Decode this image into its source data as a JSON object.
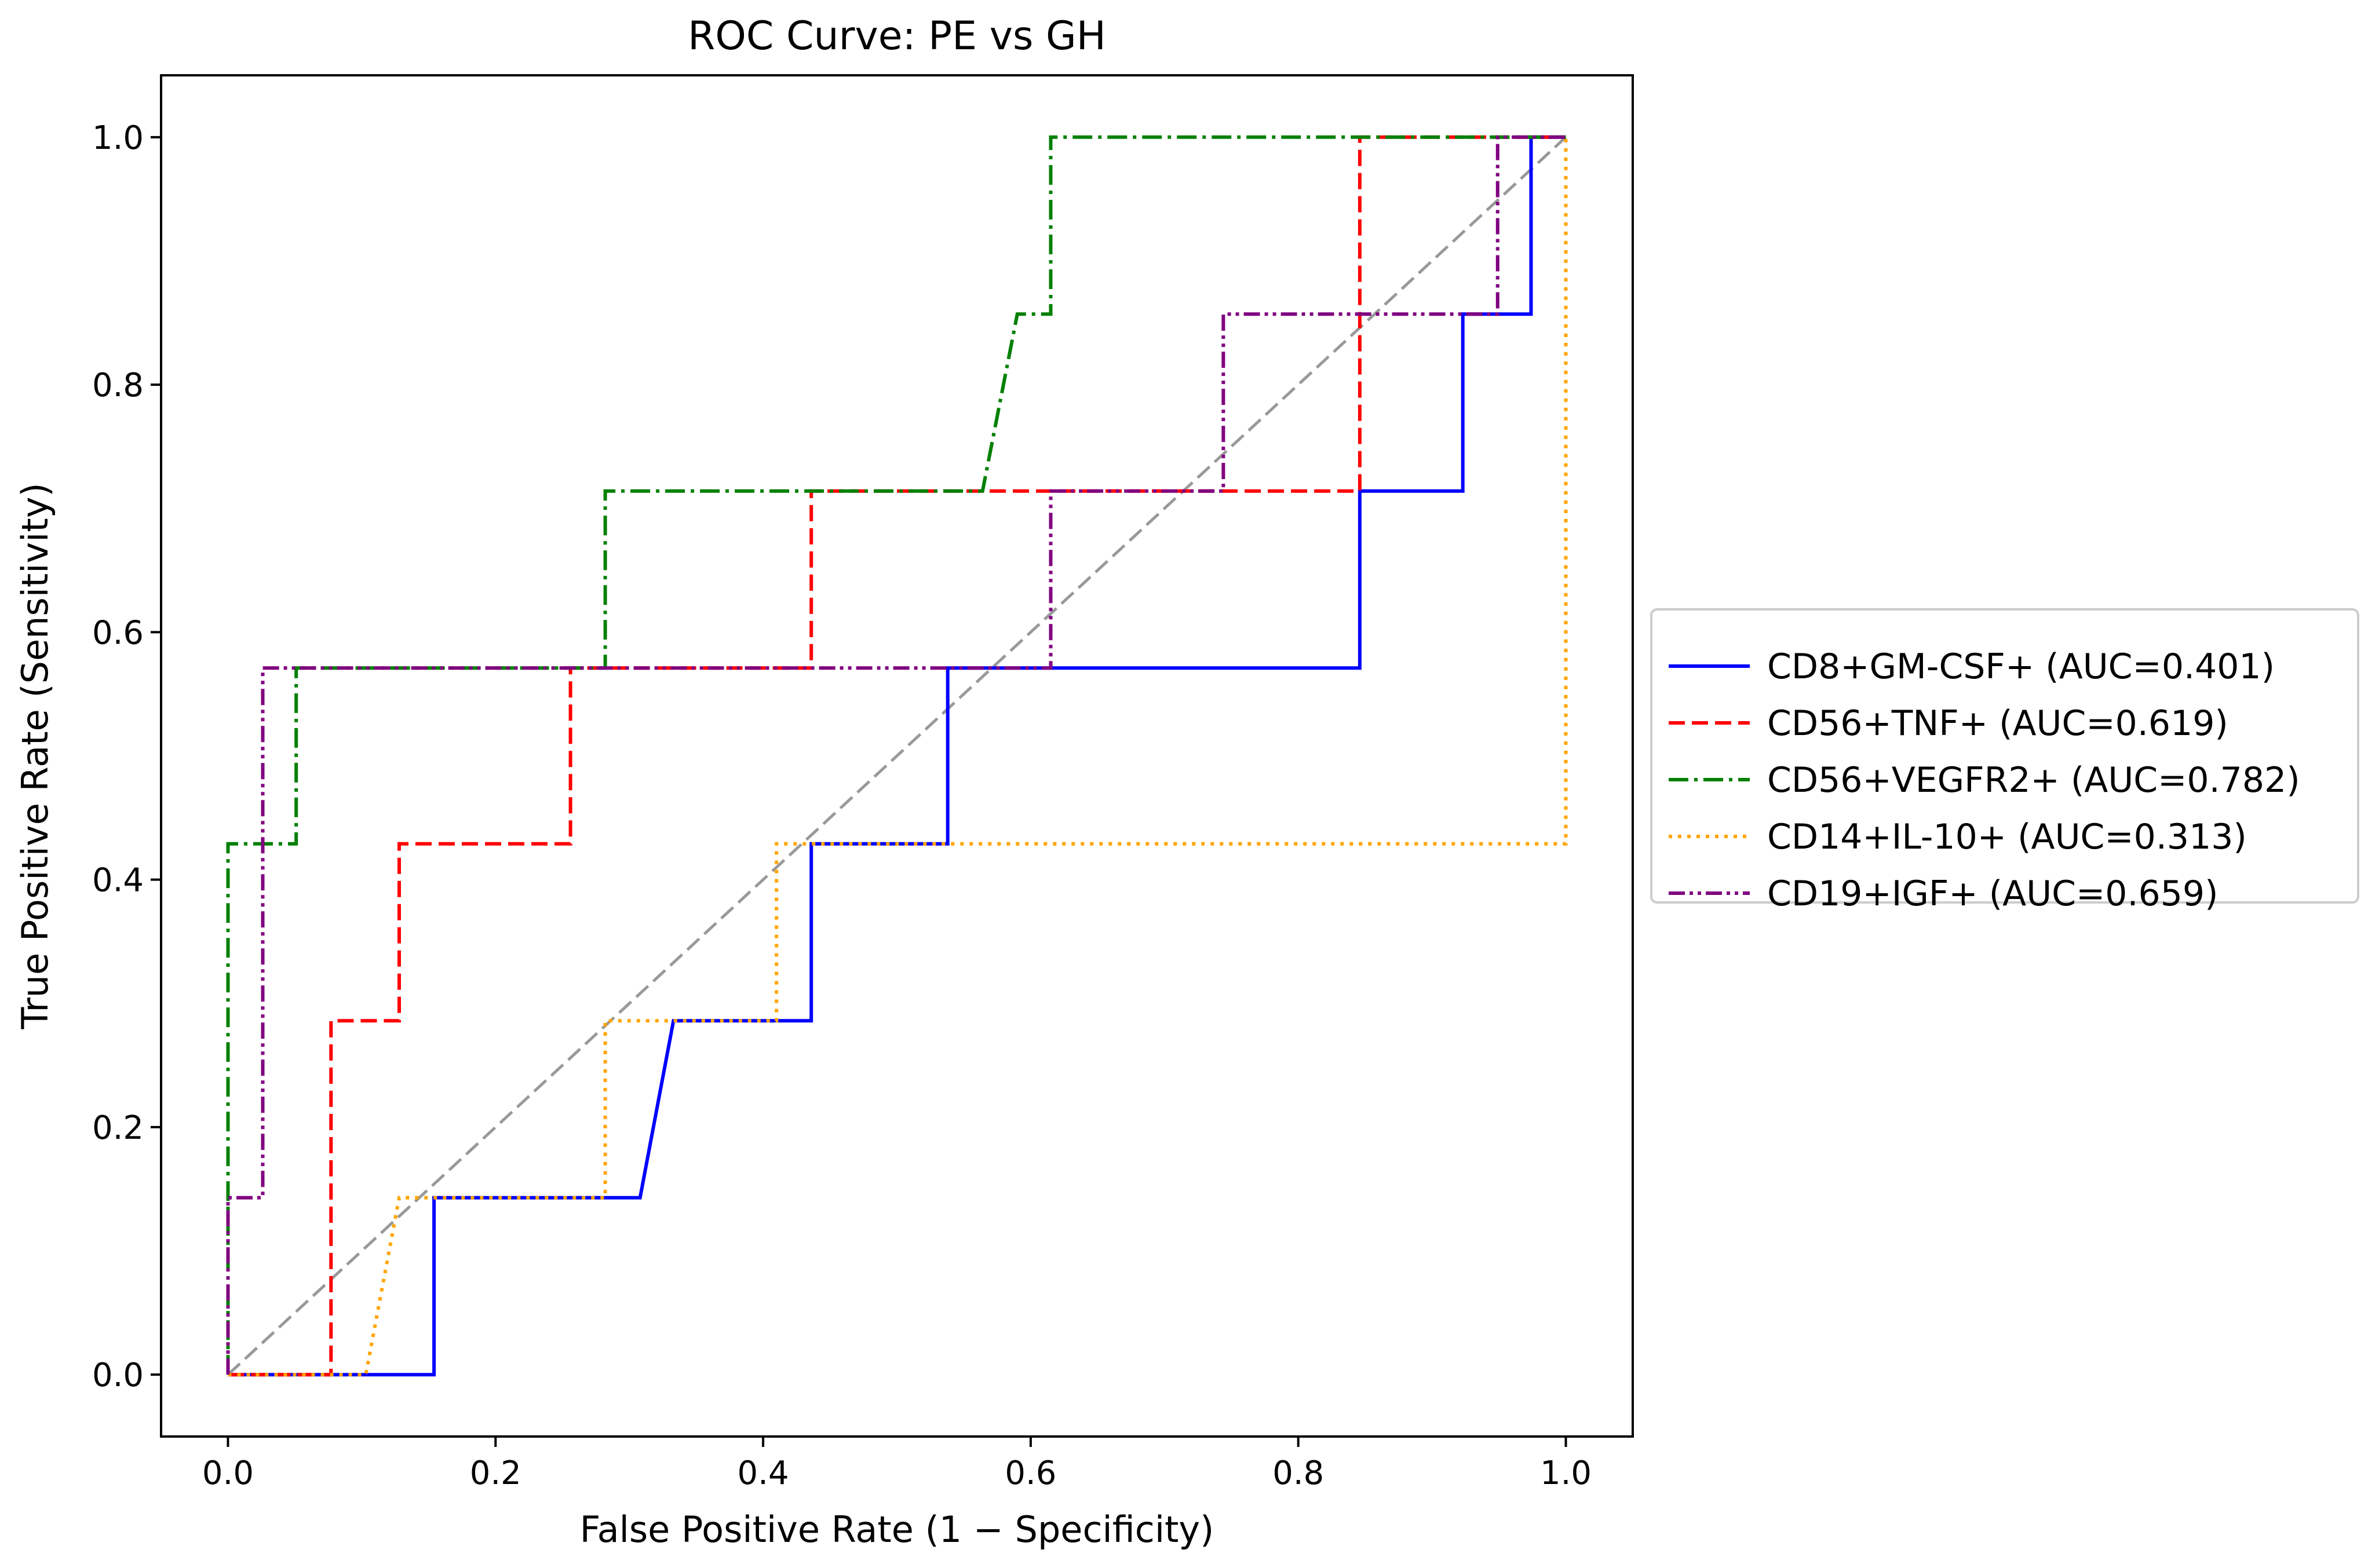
{
  "chart_data": {
    "type": "line",
    "title": "ROC Curve: PE vs GH",
    "xlabel": "False Positive Rate (1 − Specificity)",
    "ylabel": "True Positive Rate (Sensitivity)",
    "xlim": [
      -0.05,
      1.05
    ],
    "ylim": [
      -0.05,
      1.05
    ],
    "xticks": [
      0.0,
      0.2,
      0.4,
      0.6,
      0.8,
      1.0
    ],
    "yticks": [
      0.0,
      0.2,
      0.4,
      0.6,
      0.8,
      1.0
    ],
    "xtick_labels": [
      "0.0",
      "0.2",
      "0.4",
      "0.6",
      "0.8",
      "1.0"
    ],
    "ytick_labels": [
      "0.0",
      "0.2",
      "0.4",
      "0.6",
      "0.8",
      "1.0"
    ],
    "grid": false,
    "legend_position": "outside-right",
    "series": [
      {
        "name": "CD8+GM-CSF+ (AUC=0.401)",
        "color": "#0000ff",
        "dash": "solid",
        "x": [
          0.0,
          0.0,
          0.154,
          0.154,
          0.308,
          0.333,
          0.436,
          0.436,
          0.538,
          0.538,
          0.846,
          0.846,
          0.923,
          0.923,
          0.974,
          0.974,
          1.0
        ],
        "y": [
          0.0,
          0.0,
          0.0,
          0.143,
          0.143,
          0.286,
          0.286,
          0.429,
          0.429,
          0.571,
          0.571,
          0.714,
          0.714,
          0.857,
          0.857,
          1.0,
          1.0
        ]
      },
      {
        "name": "CD56+TNF+ (AUC=0.619)",
        "color": "#ff0000",
        "dash": "dashed",
        "x": [
          0.0,
          0.077,
          0.077,
          0.128,
          0.128,
          0.256,
          0.256,
          0.436,
          0.436,
          0.846,
          0.846,
          1.0
        ],
        "y": [
          0.0,
          0.0,
          0.286,
          0.286,
          0.429,
          0.429,
          0.571,
          0.571,
          0.714,
          0.714,
          1.0,
          1.0
        ]
      },
      {
        "name": "CD56+VEGFR2+ (AUC=0.782)",
        "color": "#008000",
        "dash": "dashdot",
        "x": [
          0.0,
          0.0,
          0.0,
          0.051,
          0.051,
          0.282,
          0.282,
          0.564,
          0.59,
          0.615,
          0.615,
          1.0
        ],
        "y": [
          0.0,
          0.143,
          0.429,
          0.429,
          0.571,
          0.571,
          0.714,
          0.714,
          0.857,
          0.857,
          1.0,
          1.0
        ]
      },
      {
        "name": "CD14+IL-10+ (AUC=0.313)",
        "color": "#ffa500",
        "dash": "dotted",
        "x": [
          0.0,
          0.103,
          0.128,
          0.282,
          0.282,
          0.41,
          0.41,
          1.0,
          1.0
        ],
        "y": [
          0.0,
          0.0,
          0.143,
          0.143,
          0.286,
          0.286,
          0.429,
          0.429,
          1.0
        ]
      },
      {
        "name": "CD19+IGF+ (AUC=0.659)",
        "color": "#800080",
        "dash": "dashdotdot",
        "x": [
          0.0,
          0.0,
          0.026,
          0.026,
          0.615,
          0.615,
          0.744,
          0.744,
          0.949,
          0.949,
          1.0
        ],
        "y": [
          0.0,
          0.143,
          0.143,
          0.571,
          0.571,
          0.714,
          0.714,
          0.857,
          0.857,
          1.0,
          1.0
        ]
      }
    ],
    "reference_line": {
      "name": "chance",
      "color": "#999999",
      "dash": "dashed",
      "x": [
        0.0,
        1.0
      ],
      "y": [
        0.0,
        1.0
      ]
    }
  }
}
